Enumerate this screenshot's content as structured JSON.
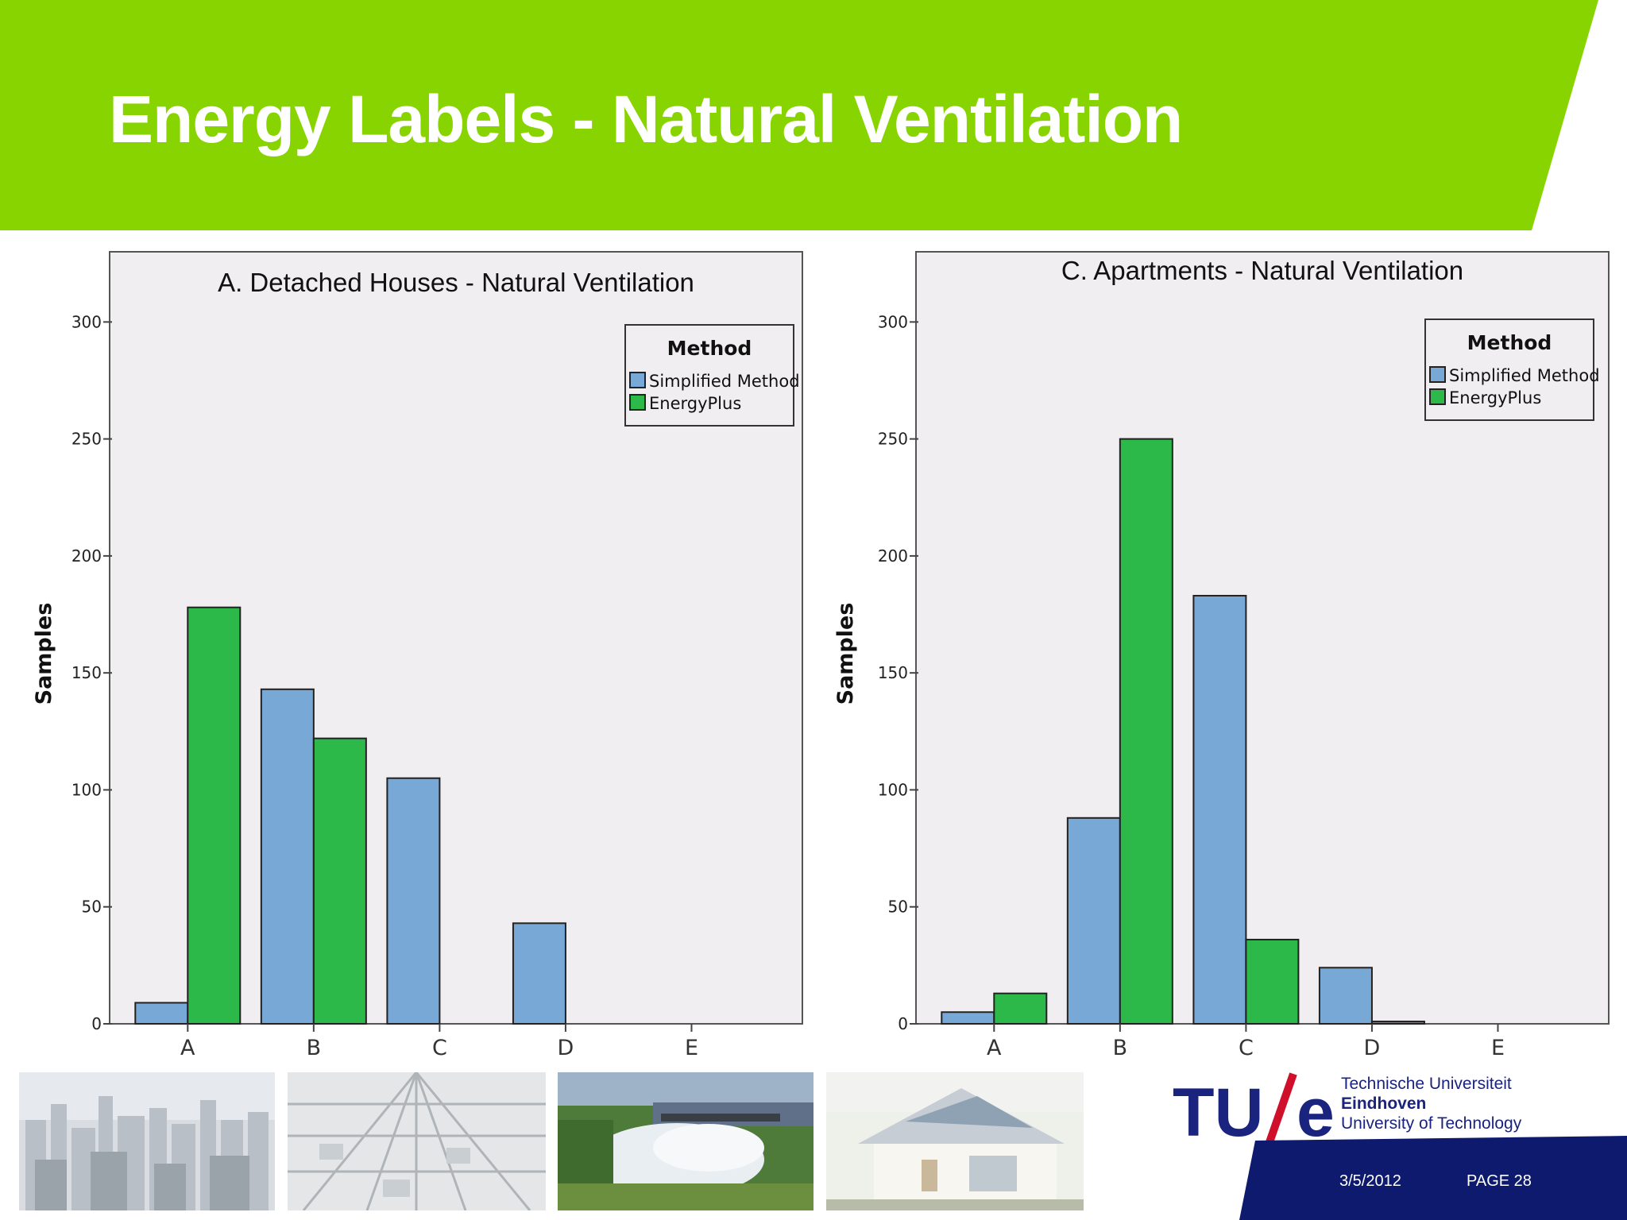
{
  "slide": {
    "title": "Energy Labels - Natural Ventilation",
    "date": "3/5/2012",
    "page": "PAGE 28"
  },
  "colors": {
    "header_green": "#88d400",
    "simplified_method": "#78a9d6",
    "energyplus": "#2db84a",
    "plot_background": "#f0eef0",
    "footer_navy": "#0d1a6e",
    "logo_navy": "#1a237e",
    "logo_red": "#d0102a"
  },
  "logo": {
    "mark": "TU/e",
    "line1": "Technische Universiteit",
    "line2": "Eindhoven",
    "line3": "University of Technology"
  },
  "photos": [
    {
      "icon": "city-skyline-photo"
    },
    {
      "icon": "greenhouse-roof-photo"
    },
    {
      "icon": "dam-waterfall-photo"
    },
    {
      "icon": "solar-house-photo"
    }
  ],
  "chart_data": [
    {
      "type": "bar",
      "title": "A. Detached Houses - Natural Ventilation",
      "xlabel": "",
      "ylabel": "Samples",
      "ylim": [
        0,
        330
      ],
      "yticks": [
        0,
        50,
        100,
        150,
        200,
        250,
        300
      ],
      "categories": [
        "A",
        "B",
        "C",
        "D",
        "E"
      ],
      "legend_title": "Method",
      "legend_position": "top-right",
      "series": [
        {
          "name": "Simplified Method",
          "values": [
            9,
            143,
            105,
            43,
            0
          ]
        },
        {
          "name": "EnergyPlus",
          "values": [
            178,
            122,
            0,
            0,
            0
          ]
        }
      ]
    },
    {
      "type": "bar",
      "title": "C. Apartments - Natural Ventilation",
      "xlabel": "",
      "ylabel": "Samples",
      "ylim": [
        0,
        330
      ],
      "yticks": [
        0,
        50,
        100,
        150,
        200,
        250,
        300
      ],
      "categories": [
        "A",
        "B",
        "C",
        "D",
        "E"
      ],
      "legend_title": "Method",
      "legend_position": "top-right",
      "series": [
        {
          "name": "Simplified Method",
          "values": [
            5,
            88,
            183,
            24,
            0
          ]
        },
        {
          "name": "EnergyPlus",
          "values": [
            13,
            250,
            36,
            1,
            0
          ]
        }
      ]
    }
  ]
}
